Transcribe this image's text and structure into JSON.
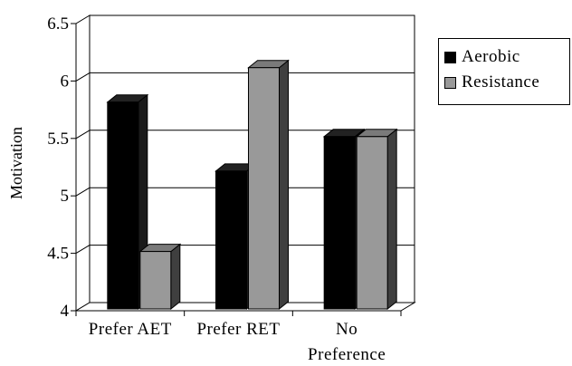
{
  "chart_data": {
    "type": "bar",
    "title": "",
    "xlabel": "",
    "ylabel": "Motivation",
    "ylim": [
      4,
      6.5
    ],
    "yticks": [
      "4",
      "4.5",
      "5",
      "5.5",
      "6",
      "6.5"
    ],
    "categories": [
      "Prefer AET",
      "Prefer RET",
      "No Preference"
    ],
    "category_label_lines": [
      [
        "Prefer AET"
      ],
      [
        "Prefer RET"
      ],
      [
        "No",
        "Preference"
      ]
    ],
    "series": [
      {
        "name": "Aerobic",
        "values": [
          5.8,
          5.2,
          5.5
        ],
        "color": "#000000",
        "side_color": "#1a1a1a"
      },
      {
        "name": "Resistance",
        "values": [
          4.5,
          6.1,
          5.5
        ],
        "color": "#999999",
        "side_color": "#3f3f3f"
      }
    ],
    "grid": true,
    "style": "3d",
    "legend_position": "right"
  }
}
